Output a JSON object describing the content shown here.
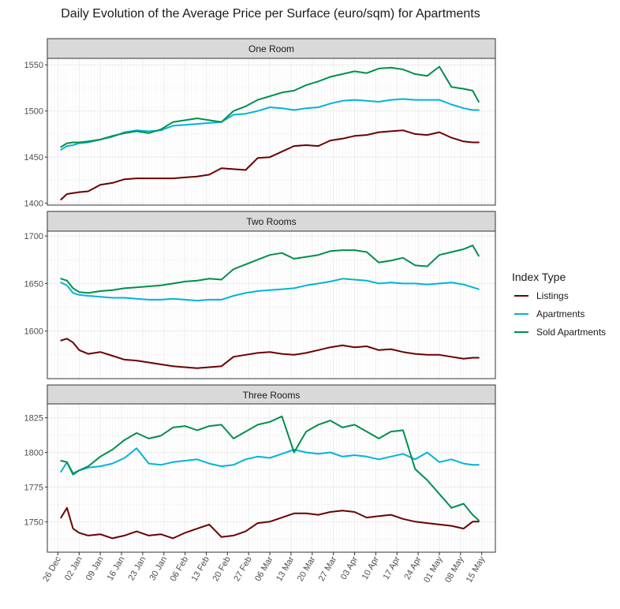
{
  "title": "Daily Evolution of the Average Price per Surface (euro/sqm) for Apartments",
  "legend": {
    "title": "Index Type",
    "position": "right",
    "entries": [
      {
        "name": "Listings",
        "color": "#6b0000"
      },
      {
        "name": "Apartments",
        "color": "#00b4d8"
      },
      {
        "name": "Sold Apartments",
        "color": "#008f4c"
      }
    ]
  },
  "x_tick_labels": [
    "26 Dec",
    "02 Jan",
    "09 Jan",
    "16 Jan",
    "23 Jan",
    "30 Jan",
    "06 Feb",
    "13 Feb",
    "20 Feb",
    "27 Feb",
    "06 Mar",
    "13 Mar",
    "20 Mar",
    "27 Mar",
    "03 Apr",
    "10 Apr",
    "17 Apr",
    "24 Apr",
    "01 May",
    "08 May",
    "15 May"
  ],
  "chart_data": [
    {
      "type": "line",
      "panel": "One Room",
      "x_unit": "days since 26 Dec",
      "x": [
        1,
        3,
        5,
        7,
        10,
        14,
        18,
        22,
        26,
        30,
        34,
        38,
        42,
        46,
        50,
        54,
        58,
        62,
        66,
        70,
        74,
        78,
        82,
        86,
        90,
        94,
        98,
        102,
        106,
        110,
        114,
        118,
        122,
        126,
        130,
        134,
        137,
        139
      ],
      "ylim": [
        1398,
        1557
      ],
      "yticks": [
        1400,
        1450,
        1500,
        1550
      ],
      "series": [
        {
          "name": "Listings",
          "values": [
            1404,
            1410,
            1411,
            1412,
            1413,
            1420,
            1422,
            1426,
            1427,
            1427,
            1427,
            1427,
            1428,
            1429,
            1431,
            1438,
            1437,
            1436,
            1449,
            1450,
            1456,
            1462,
            1463,
            1462,
            1468,
            1470,
            1473,
            1474,
            1477,
            1478,
            1479,
            1475,
            1474,
            1477,
            1471,
            1467,
            1466,
            1466
          ]
        },
        {
          "name": "Apartments",
          "values": [
            1458,
            1462,
            1463,
            1465,
            1466,
            1469,
            1472,
            1477,
            1479,
            1478,
            1479,
            1484,
            1485,
            1486,
            1487,
            1488,
            1496,
            1497,
            1500,
            1504,
            1503,
            1501,
            1503,
            1504,
            1508,
            1511,
            1512,
            1511,
            1510,
            1512,
            1513,
            1512,
            1512,
            1512,
            1507,
            1503,
            1501,
            1501
          ]
        },
        {
          "name": "Sold Apartments",
          "values": [
            1461,
            1465,
            1466,
            1466,
            1467,
            1469,
            1473,
            1476,
            1478,
            1476,
            1480,
            1488,
            1490,
            1492,
            1490,
            1488,
            1500,
            1505,
            1512,
            1516,
            1520,
            1522,
            1528,
            1532,
            1537,
            1540,
            1543,
            1541,
            1546,
            1547,
            1545,
            1540,
            1538,
            1548,
            1526,
            1524,
            1522,
            1510
          ]
        }
      ]
    },
    {
      "type": "line",
      "panel": "Two Rooms",
      "x_unit": "days since 26 Dec",
      "x": [
        1,
        3,
        5,
        7,
        10,
        14,
        18,
        22,
        26,
        30,
        34,
        38,
        42,
        46,
        50,
        54,
        58,
        62,
        66,
        70,
        74,
        78,
        82,
        86,
        90,
        94,
        98,
        102,
        106,
        110,
        114,
        118,
        122,
        126,
        130,
        134,
        137,
        139
      ],
      "ylim": [
        1550,
        1705
      ],
      "yticks": [
        1600,
        1650,
        1700
      ],
      "series": [
        {
          "name": "Listings",
          "values": [
            1590,
            1592,
            1588,
            1580,
            1576,
            1578,
            1574,
            1570,
            1569,
            1567,
            1565,
            1563,
            1562,
            1561,
            1562,
            1563,
            1573,
            1575,
            1577,
            1578,
            1576,
            1575,
            1577,
            1580,
            1583,
            1585,
            1583,
            1584,
            1580,
            1581,
            1578,
            1576,
            1575,
            1575,
            1573,
            1571,
            1572,
            1572
          ]
        },
        {
          "name": "Apartments",
          "values": [
            1651,
            1648,
            1640,
            1638,
            1637,
            1636,
            1635,
            1635,
            1634,
            1633,
            1633,
            1634,
            1633,
            1632,
            1633,
            1633,
            1637,
            1640,
            1642,
            1643,
            1644,
            1645,
            1648,
            1650,
            1652,
            1655,
            1654,
            1653,
            1650,
            1651,
            1650,
            1650,
            1649,
            1650,
            1651,
            1649,
            1646,
            1644
          ]
        },
        {
          "name": "Sold Apartments",
          "values": [
            1655,
            1653,
            1645,
            1641,
            1640,
            1642,
            1643,
            1645,
            1646,
            1647,
            1648,
            1650,
            1652,
            1653,
            1655,
            1654,
            1665,
            1670,
            1675,
            1680,
            1682,
            1676,
            1678,
            1680,
            1684,
            1685,
            1685,
            1683,
            1672,
            1674,
            1677,
            1669,
            1668,
            1680,
            1683,
            1686,
            1690,
            1679
          ]
        }
      ]
    },
    {
      "type": "line",
      "panel": "Three Rooms",
      "x_unit": "days since 26 Dec",
      "x": [
        1,
        3,
        5,
        7,
        10,
        14,
        18,
        22,
        26,
        30,
        34,
        38,
        42,
        46,
        50,
        54,
        58,
        62,
        66,
        70,
        74,
        78,
        82,
        86,
        90,
        94,
        98,
        102,
        106,
        110,
        114,
        118,
        122,
        126,
        130,
        134,
        137,
        139
      ],
      "ylim": [
        1728,
        1835
      ],
      "yticks": [
        1750,
        1775,
        1800,
        1825
      ],
      "series": [
        {
          "name": "Listings",
          "values": [
            1753,
            1760,
            1745,
            1742,
            1740,
            1741,
            1738,
            1740,
            1743,
            1740,
            1741,
            1738,
            1742,
            1745,
            1748,
            1739,
            1740,
            1743,
            1749,
            1750,
            1753,
            1756,
            1756,
            1755,
            1757,
            1758,
            1757,
            1753,
            1754,
            1755,
            1752,
            1750,
            1749,
            1748,
            1747,
            1745,
            1750,
            1750
          ]
        },
        {
          "name": "Apartments",
          "values": [
            1786,
            1793,
            1785,
            1787,
            1789,
            1790,
            1792,
            1796,
            1803,
            1792,
            1791,
            1793,
            1794,
            1795,
            1792,
            1790,
            1791,
            1795,
            1797,
            1796,
            1799,
            1802,
            1800,
            1799,
            1800,
            1797,
            1798,
            1797,
            1795,
            1797,
            1799,
            1795,
            1800,
            1793,
            1795,
            1792,
            1791,
            1791
          ]
        },
        {
          "name": "Sold Apartments",
          "values": [
            1794,
            1793,
            1784,
            1787,
            1790,
            1797,
            1802,
            1809,
            1814,
            1810,
            1812,
            1818,
            1819,
            1816,
            1819,
            1820,
            1810,
            1815,
            1820,
            1822,
            1826,
            1800,
            1815,
            1820,
            1823,
            1818,
            1820,
            1815,
            1810,
            1815,
            1816,
            1788,
            1780,
            1770,
            1760,
            1763,
            1755,
            1751
          ]
        }
      ]
    }
  ]
}
